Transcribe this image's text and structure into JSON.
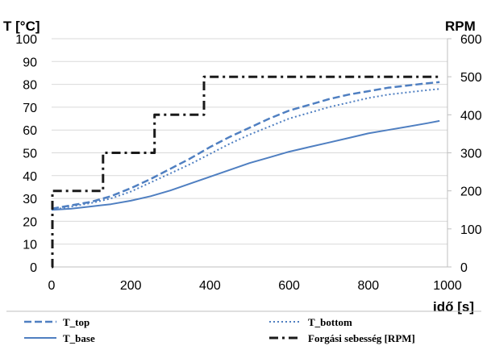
{
  "chart_data": {
    "type": "line",
    "ylabel_left": "T [°C]",
    "ylabel_right": "RPM",
    "xlabel": "idő [s]",
    "xlim": [
      0,
      1000
    ],
    "ylim_left": [
      0,
      100
    ],
    "ylim_right": [
      0,
      600
    ],
    "x_ticks": [
      "0",
      "200",
      "400",
      "600",
      "800",
      "1000"
    ],
    "y_left_ticks": [
      "0",
      "10",
      "20",
      "30",
      "40",
      "50",
      "60",
      "70",
      "80",
      "90",
      "100"
    ],
    "y_right_ticks": [
      "0",
      "100",
      "200",
      "300",
      "400",
      "500",
      "600"
    ],
    "grid": "horizontal",
    "legend_position": "bottom",
    "series": [
      {
        "name": "T_top",
        "axis": "left",
        "style": "dashed",
        "color": "#4f7fc1",
        "x": [
          0,
          50,
          100,
          150,
          200,
          250,
          300,
          350,
          400,
          450,
          500,
          550,
          600,
          650,
          700,
          750,
          800,
          850,
          900,
          950,
          980
        ],
        "y": [
          25.5,
          27,
          28.5,
          31,
          34.5,
          38.5,
          43,
          47.5,
          52.5,
          57,
          61,
          65,
          68.5,
          71,
          73.5,
          75.5,
          77,
          78.5,
          79.5,
          80.5,
          81
        ]
      },
      {
        "name": "T_bottom",
        "axis": "left",
        "style": "dotted",
        "color": "#4f7fc1",
        "x": [
          0,
          50,
          100,
          150,
          200,
          250,
          300,
          350,
          400,
          450,
          500,
          550,
          600,
          650,
          700,
          750,
          800,
          850,
          900,
          950,
          980
        ],
        "y": [
          25,
          26.5,
          28,
          30,
          33,
          37,
          41,
          45,
          49.5,
          54,
          58,
          61.5,
          65,
          67.5,
          70,
          72,
          74,
          75.5,
          76.5,
          77.5,
          78
        ]
      },
      {
        "name": "T_base",
        "axis": "left",
        "style": "solid",
        "color": "#4f7fc1",
        "x": [
          0,
          50,
          100,
          150,
          200,
          250,
          300,
          350,
          400,
          450,
          500,
          550,
          600,
          650,
          700,
          750,
          800,
          850,
          900,
          950,
          980
        ],
        "y": [
          25,
          25.5,
          26.5,
          27.5,
          29,
          31,
          33.5,
          36.5,
          39.5,
          42.5,
          45.5,
          48,
          50.5,
          52.5,
          54.5,
          56.5,
          58.5,
          60,
          61.5,
          63,
          64
        ]
      },
      {
        "name": "Forgási sebesség [RPM]",
        "axis": "right",
        "style": "dash-dot",
        "color": "#1a1a1a",
        "x": [
          0,
          2,
          2,
          130,
          130,
          260,
          260,
          385,
          385,
          980
        ],
        "y": [
          0,
          0,
          200,
          200,
          300,
          300,
          400,
          400,
          500,
          500
        ]
      }
    ]
  }
}
